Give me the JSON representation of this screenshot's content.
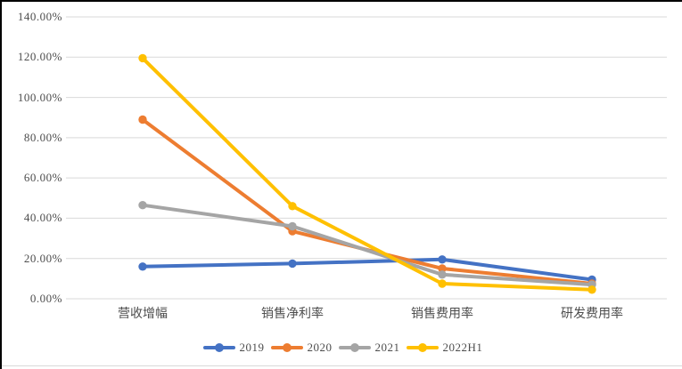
{
  "page": {
    "background": "#FFFFFF",
    "frame_border_color": "#000000",
    "bottom_rule_color": "#D9D9D9"
  },
  "chart_data": {
    "type": "line",
    "title": "",
    "xlabel": "",
    "ylabel": "",
    "categories": [
      "营收增幅",
      "销售净利率",
      "销售费用率",
      "研发费用率"
    ],
    "series": [
      {
        "name": "2019",
        "color": "#4472C4",
        "values": [
          16.0,
          17.5,
          19.5,
          9.5
        ]
      },
      {
        "name": "2020",
        "color": "#ED7D31",
        "values": [
          89.0,
          33.5,
          15.0,
          7.5
        ]
      },
      {
        "name": "2021",
        "color": "#A5A5A5",
        "values": [
          46.5,
          36.0,
          12.0,
          7.0
        ]
      },
      {
        "name": "2022H1",
        "color": "#FFC000",
        "values": [
          119.5,
          46.0,
          7.5,
          4.5
        ]
      }
    ],
    "ylim": [
      0,
      140
    ],
    "ytick_step": 20,
    "y_tick_labels": [
      "0.00%",
      "20.00%",
      "40.00%",
      "60.00%",
      "80.00%",
      "100.00%",
      "120.00%",
      "140.00%"
    ],
    "grid": true,
    "gridline_color": "#D9D9D9",
    "tick_label_color": "#4D4D4D",
    "legend_position": "bottom",
    "marker": "circle"
  }
}
